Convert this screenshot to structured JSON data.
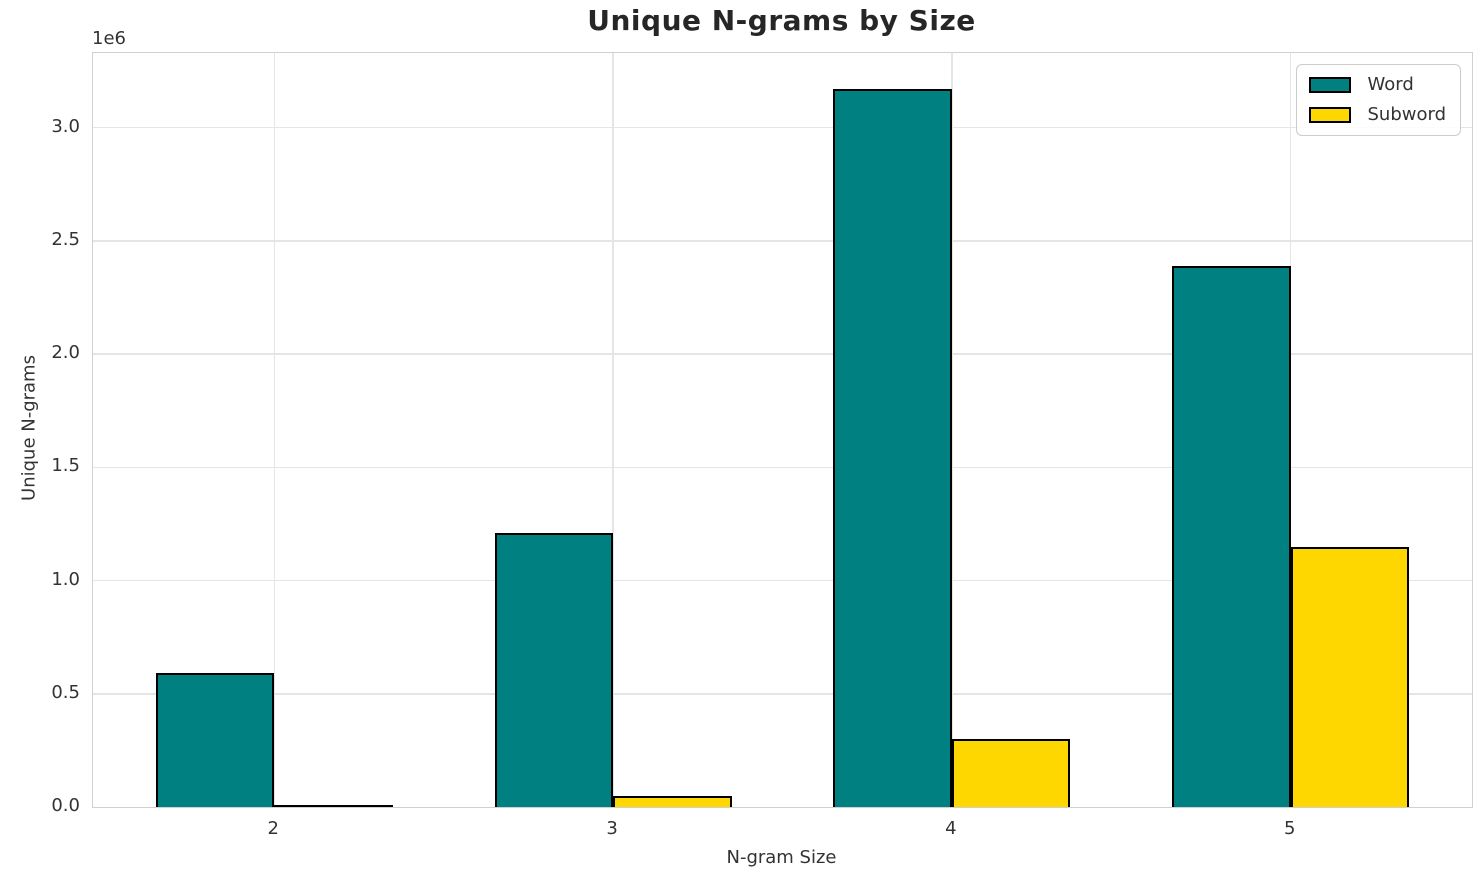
{
  "chart_data": {
    "type": "bar",
    "title": "Unique N-grams by Size",
    "xlabel": "N-gram Size",
    "ylabel": "Unique N-grams",
    "y_offset_text": "1e6",
    "categories": [
      "2",
      "3",
      "4",
      "5"
    ],
    "x": [
      2,
      3,
      4,
      5
    ],
    "bar_width": 0.35,
    "series": [
      {
        "name": "Word",
        "color": "#008080",
        "edge_color": "#000000",
        "values": [
          590000,
          1210000,
          3170000,
          2390000
        ]
      },
      {
        "name": "Subword",
        "color": "#FFD700",
        "edge_color": "#000000",
        "values": [
          5000,
          47000,
          300000,
          1150000
        ]
      }
    ],
    "xlim": [
      1.465,
      5.535
    ],
    "ylim": [
      0,
      3330000
    ],
    "ytick_values": [
      0,
      500000,
      1000000,
      1500000,
      2000000,
      2500000,
      3000000
    ],
    "ytick_labels": [
      "0.0",
      "0.5",
      "1.0",
      "1.5",
      "2.0",
      "2.5",
      "3.0"
    ],
    "grid": true,
    "legend": {
      "position": "upper right",
      "entries": [
        "Word",
        "Subword"
      ]
    },
    "colors": {
      "grid": "#e5e5e5",
      "spine": "#d0d0d0",
      "tick_text": "#333333",
      "title_text": "#262626"
    }
  }
}
